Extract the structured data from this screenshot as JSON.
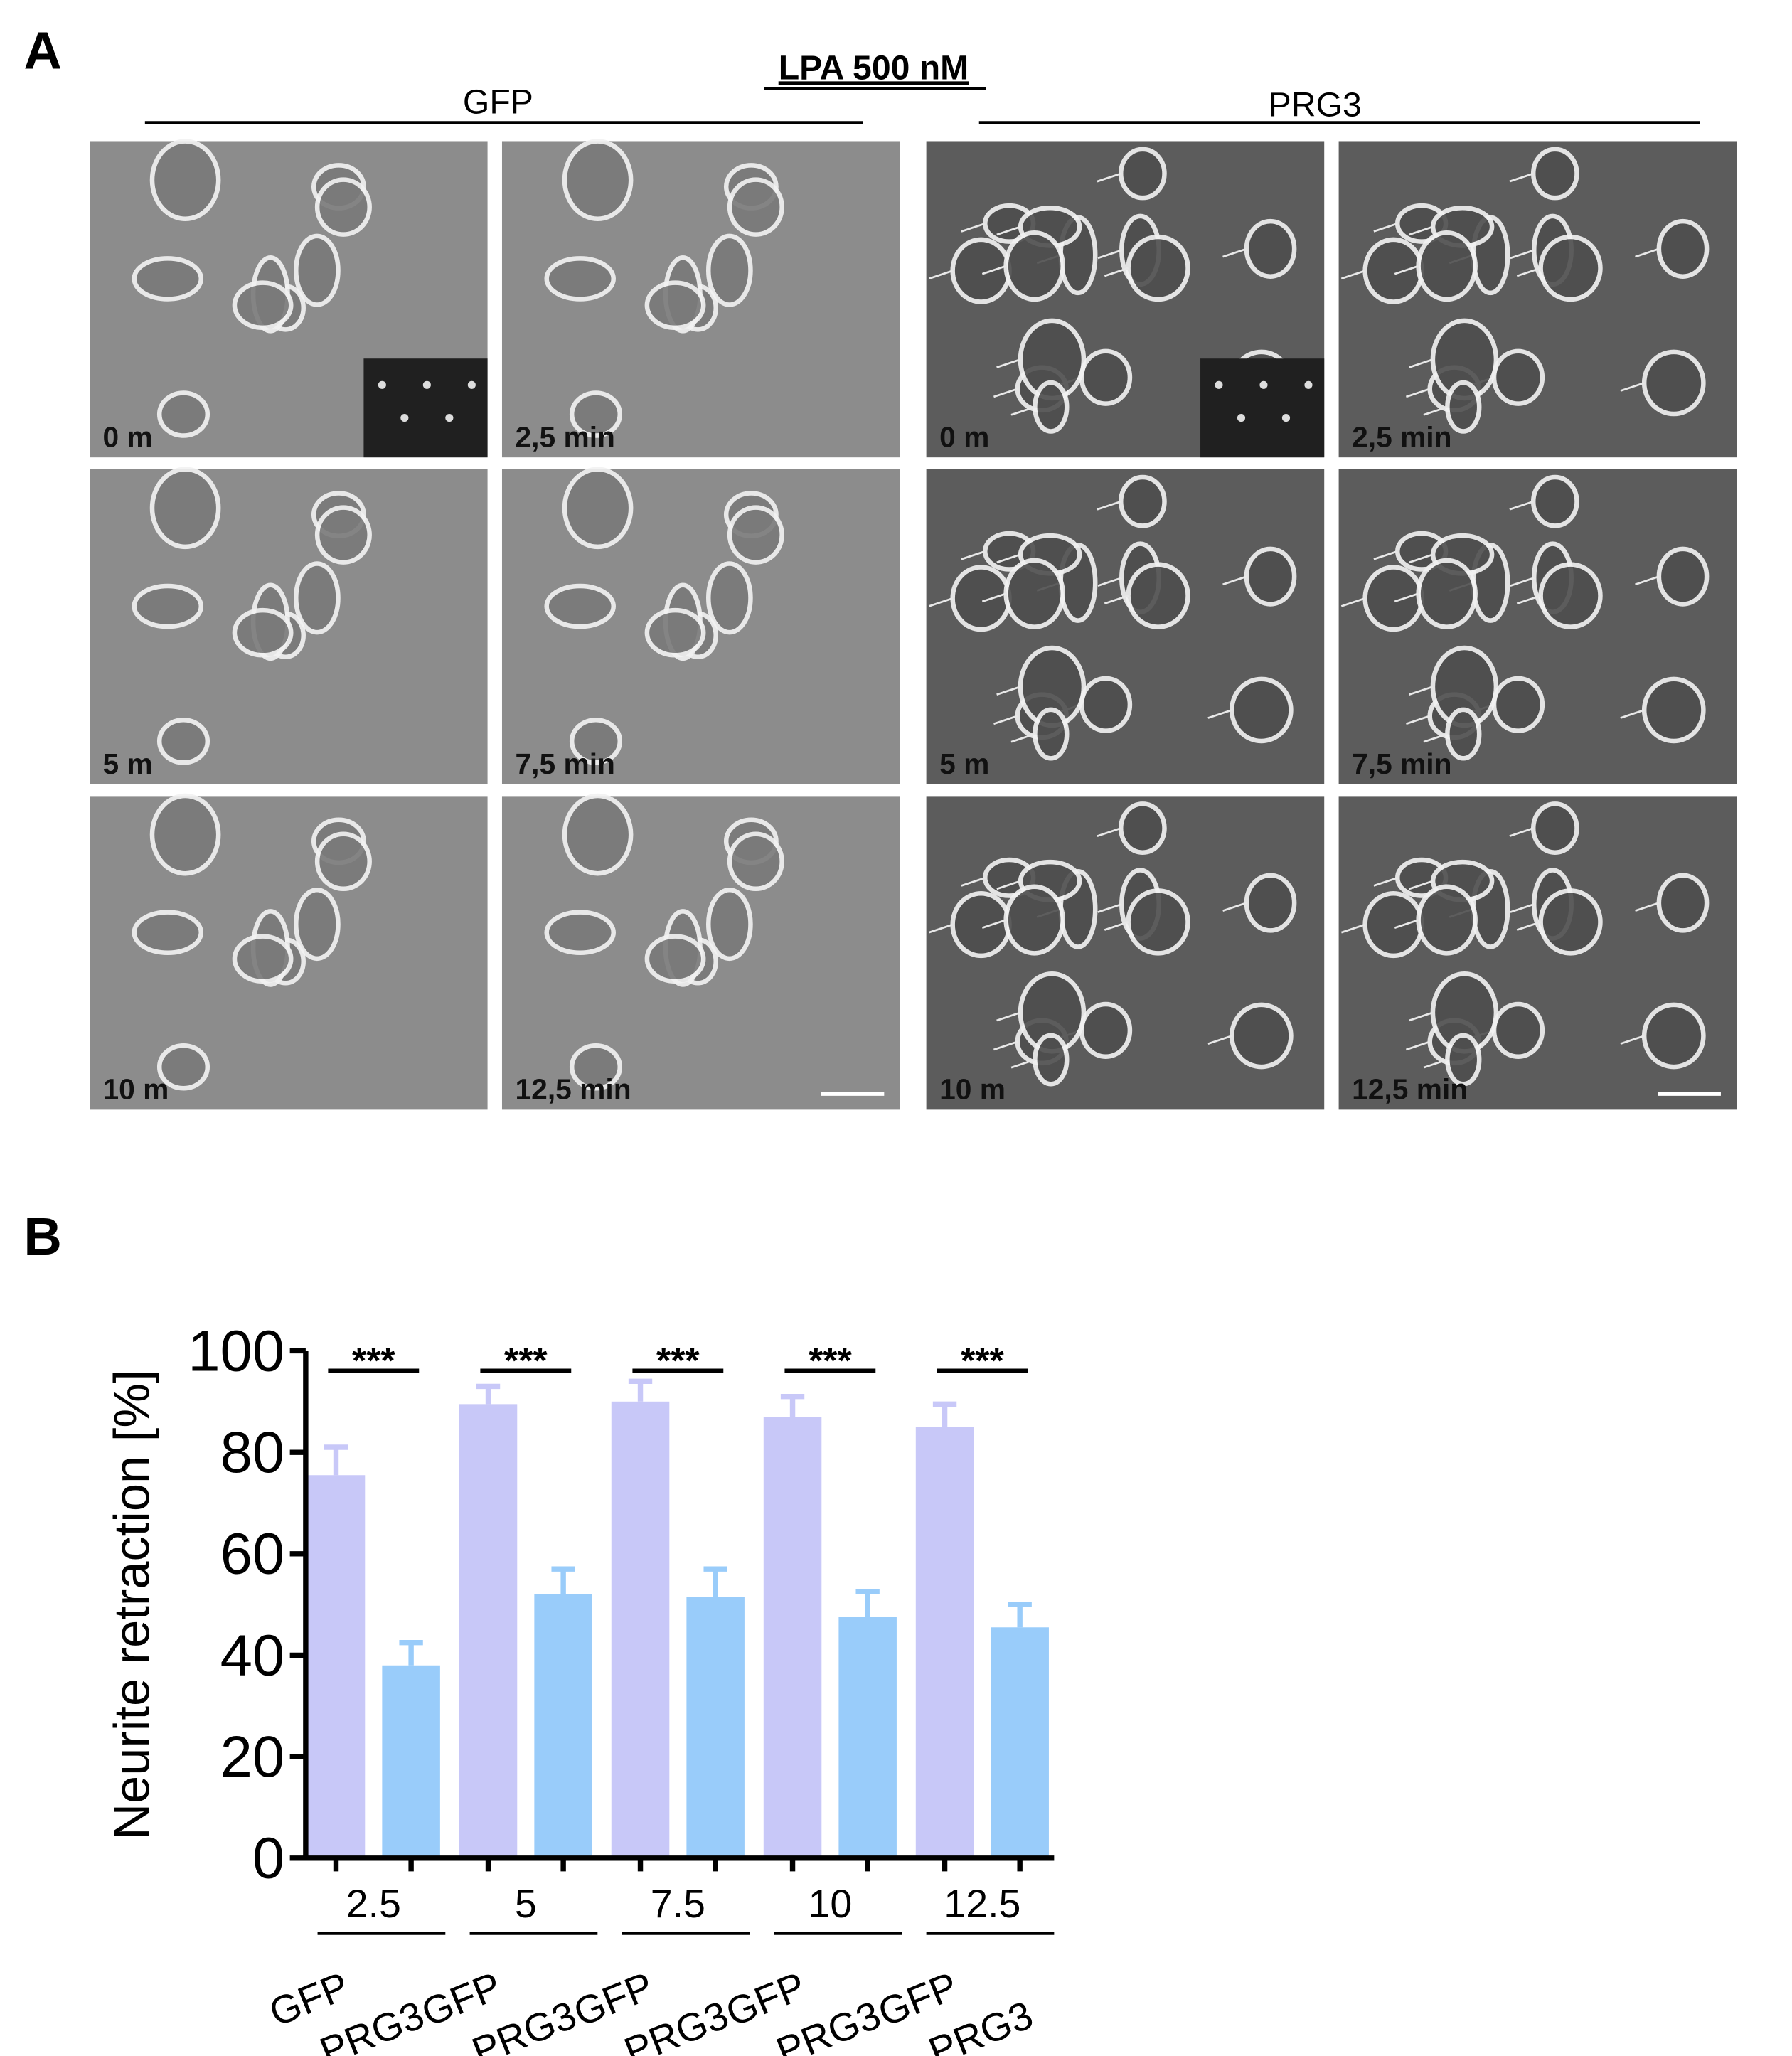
{
  "panel_a": {
    "label": "A",
    "title": "LPA 500 nM",
    "groups": [
      {
        "name": "GFP",
        "time_labels": [
          "0 m",
          "2,5 min",
          "5 m",
          "7,5 min",
          "10 m",
          "12,5 min"
        ]
      },
      {
        "name": "PRG3",
        "time_labels": [
          "0 m",
          "2,5 min",
          "5 m",
          "7,5 min",
          "10 m",
          "12,5 min"
        ]
      }
    ]
  },
  "panel_b_label": "B",
  "chart_data": {
    "type": "bar",
    "ylabel": "Neurite retraction [%]",
    "categories": [
      "2.5",
      "5",
      "7.5",
      "10",
      "12.5"
    ],
    "series": [
      {
        "name": "GFP",
        "color": "#c8c8f8",
        "values": [
          75.5,
          89.5,
          90,
          87,
          85
        ],
        "errors": [
          5.5,
          3.5,
          4,
          4,
          4.5
        ]
      },
      {
        "name": "PRG3",
        "color": "#99ccfa",
        "values": [
          38,
          52,
          51.5,
          47.5,
          45.5
        ],
        "errors": [
          4.5,
          5,
          5.5,
          5,
          4.5
        ]
      }
    ],
    "significance": [
      "***",
      "***",
      "***",
      "***",
      "***"
    ],
    "ylim": [
      0,
      100
    ],
    "yticks": [
      0,
      20,
      40,
      60,
      80,
      100
    ]
  }
}
